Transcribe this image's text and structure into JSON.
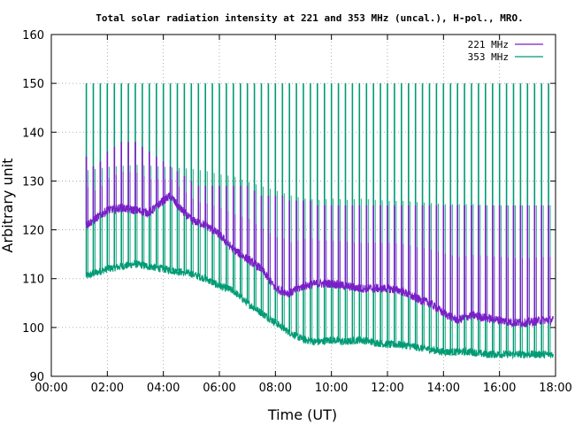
{
  "chart_data": {
    "type": "line",
    "title": "Total solar radiation intensity at 221 and 353 MHz (uncal.), H-pol., MRO.",
    "xlabel": "Time (UT)",
    "ylabel": "Arbitrary unit",
    "xlim": [
      "00:00",
      "18:00"
    ],
    "ylim": [
      90,
      160
    ],
    "x_ticks": [
      "00:00",
      "02:00",
      "04:00",
      "06:00",
      "08:00",
      "10:00",
      "12:00",
      "14:00",
      "16:00",
      "18:00"
    ],
    "y_ticks": [
      "90",
      "100",
      "110",
      "120",
      "130",
      "140",
      "150",
      "160"
    ],
    "grid": true,
    "legend_position": "top-right",
    "calibration_spike_interval_minutes": 15,
    "series": [
      {
        "name": "221 MHz",
        "color": "#7a1ec8",
        "x": [
          "01:15",
          "01:30",
          "02:00",
          "02:30",
          "03:00",
          "03:30",
          "04:00",
          "04:15",
          "04:30",
          "05:00",
          "05:30",
          "06:00",
          "06:30",
          "07:00",
          "07:30",
          "08:00",
          "08:30",
          "09:00",
          "09:30",
          "10:00",
          "10:30",
          "11:00",
          "11:30",
          "12:00",
          "12:30",
          "13:00",
          "13:30",
          "14:00",
          "14:30",
          "15:00",
          "15:30",
          "16:00",
          "16:30",
          "17:00",
          "17:30",
          "17:55"
        ],
        "values": [
          121,
          122,
          124,
          124.5,
          124,
          123.5,
          126,
          127,
          125,
          122,
          121,
          119,
          116,
          114,
          112,
          108,
          107,
          108.5,
          109,
          109,
          108.5,
          108,
          108,
          108,
          107.5,
          106,
          105,
          103,
          101.5,
          102.5,
          102,
          101.5,
          101,
          101,
          101.5,
          101.5
        ],
        "spike_peak_values": [
          135,
          133,
          134,
          136,
          137,
          138,
          138,
          138,
          137,
          136,
          135,
          134,
          133,
          132,
          131,
          130,
          129,
          129,
          129,
          129,
          129,
          129,
          129,
          129,
          128,
          127,
          127,
          127,
          127,
          126,
          126,
          126,
          126,
          125,
          125,
          125,
          125
        ]
      },
      {
        "name": "353 MHz",
        "color": "#009b74",
        "x": [
          "01:15",
          "01:30",
          "02:00",
          "02:30",
          "03:00",
          "03:30",
          "04:00",
          "04:30",
          "05:00",
          "05:30",
          "06:00",
          "06:30",
          "07:00",
          "07:30",
          "08:00",
          "08:30",
          "09:00",
          "09:30",
          "10:00",
          "10:30",
          "11:00",
          "11:30",
          "12:00",
          "12:30",
          "13:00",
          "13:30",
          "14:00",
          "14:30",
          "15:00",
          "15:30",
          "16:00",
          "16:30",
          "17:00",
          "17:30",
          "17:55"
        ],
        "values": [
          110.5,
          111,
          112,
          112.5,
          113,
          112.5,
          112,
          111.5,
          111,
          110,
          108.5,
          107.5,
          105,
          103,
          101,
          99,
          97.5,
          97,
          97.5,
          97,
          97.5,
          97,
          96.5,
          96.5,
          96,
          95.5,
          95,
          95,
          95,
          94.5,
          94.5,
          94.5,
          94.5,
          94.5,
          94.5
        ],
        "spike_peak_value": 150
      }
    ]
  }
}
